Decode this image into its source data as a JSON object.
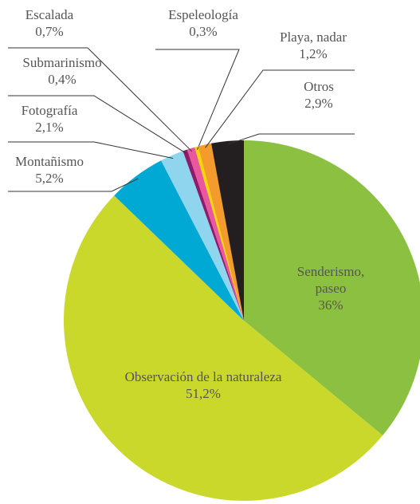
{
  "chart_data": {
    "type": "pie",
    "categories": [
      "Senderismo, paseo",
      "Observación de la naturaleza",
      "Montañismo",
      "Fotografía",
      "Submarinismo",
      "Escalada",
      "Espeleología",
      "Playa, nadar",
      "Otros"
    ],
    "values": [
      36,
      51.2,
      5.2,
      2.1,
      0.4,
      0.7,
      0.3,
      1.2,
      2.9
    ],
    "value_labels": [
      "36%",
      "51,2%",
      "5,2%",
      "2,1%",
      "0,4%",
      "0,7%",
      "0,3%",
      "1,2%",
      "2,9%"
    ],
    "colors": [
      "#8cc041",
      "#c9d82b",
      "#00a9d4",
      "#8fd5ee",
      "#8e1b6b",
      "#e9579e",
      "#f6d800",
      "#f39b2c",
      "#231f20"
    ]
  }
}
